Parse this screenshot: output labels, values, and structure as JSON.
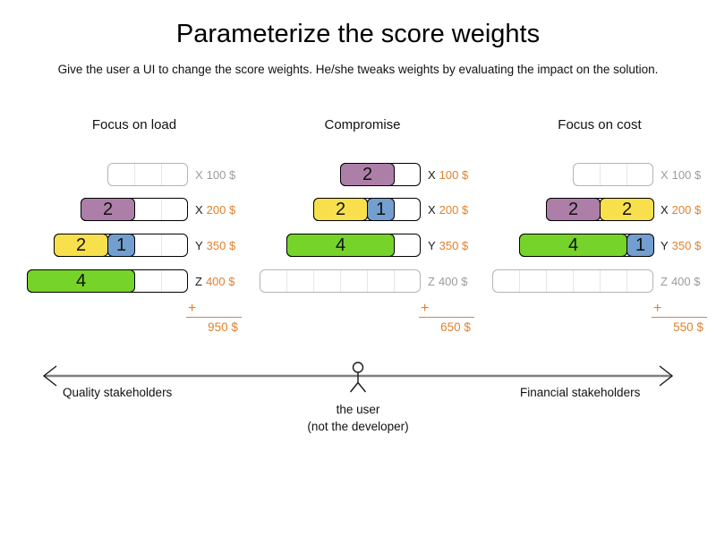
{
  "title": "Parameterize the score weights",
  "subtitle": "Give the user a UI to change the score weights. He/she tweaks weights by evaluating the impact on the solution.",
  "palette": {
    "purple": "#ad7fa8",
    "yellow": "#f7e04b",
    "blue": "#729fcf",
    "green": "#76d32a",
    "orange": "#e0812c",
    "gray_label": "#9c9c9c",
    "active_border": "#000000",
    "inactive_border": "#b4b4b4",
    "grid_line": "#e6e6e6",
    "axis_line": "#7f7f7f"
  },
  "panels": [
    {
      "name": "Focus on load",
      "rows": [
        {
          "letter": "X",
          "price": "100 $",
          "units": 3,
          "active": false,
          "blocks": []
        },
        {
          "letter": "X",
          "price": "200 $",
          "units": 4,
          "active": true,
          "blocks": [
            {
              "value": "2",
              "color": "purple"
            }
          ]
        },
        {
          "letter": "Y",
          "price": "350 $",
          "units": 5,
          "active": true,
          "blocks": [
            {
              "value": "2",
              "color": "yellow"
            },
            {
              "value": "1",
              "color": "blue"
            }
          ]
        },
        {
          "letter": "Z",
          "price": "400 $",
          "units": 6,
          "active": true,
          "blocks": [
            {
              "value": "4",
              "color": "green"
            }
          ]
        }
      ],
      "plus": "+",
      "total": "950 $"
    },
    {
      "name": "Compromise",
      "rows": [
        {
          "letter": "X",
          "price": "100 $",
          "units": 3,
          "active": true,
          "blocks": [
            {
              "value": "2",
              "color": "purple"
            }
          ]
        },
        {
          "letter": "X",
          "price": "200 $",
          "units": 4,
          "active": true,
          "blocks": [
            {
              "value": "2",
              "color": "yellow"
            },
            {
              "value": "1",
              "color": "blue"
            }
          ]
        },
        {
          "letter": "Y",
          "price": "350 $",
          "units": 5,
          "active": true,
          "blocks": [
            {
              "value": "4",
              "color": "green"
            }
          ]
        },
        {
          "letter": "Z",
          "price": "400 $",
          "units": 6,
          "active": false,
          "blocks": []
        }
      ],
      "plus": "+",
      "total": "650 $"
    },
    {
      "name": "Focus on cost",
      "rows": [
        {
          "letter": "X",
          "price": "100 $",
          "units": 3,
          "active": false,
          "blocks": []
        },
        {
          "letter": "X",
          "price": "200 $",
          "units": 4,
          "active": true,
          "blocks": [
            {
              "value": "2",
              "color": "purple"
            },
            {
              "value": "2",
              "color": "yellow"
            }
          ]
        },
        {
          "letter": "Y",
          "price": "350 $",
          "units": 5,
          "active": true,
          "blocks": [
            {
              "value": "4",
              "color": "green"
            },
            {
              "value": "1",
              "color": "blue"
            }
          ]
        },
        {
          "letter": "Z",
          "price": "400 $",
          "units": 6,
          "active": false,
          "blocks": []
        }
      ],
      "plus": "+",
      "total": "550 $"
    }
  ],
  "footer": {
    "left_label": "Quality stakeholders",
    "right_label": "Financial stakeholders",
    "user_line1": "the user",
    "user_line2": "(not the developer)"
  },
  "icons": {
    "left_arrowhead": "chevron-left",
    "right_arrowhead": "chevron-right",
    "user_actor": "stick-figure-person"
  }
}
